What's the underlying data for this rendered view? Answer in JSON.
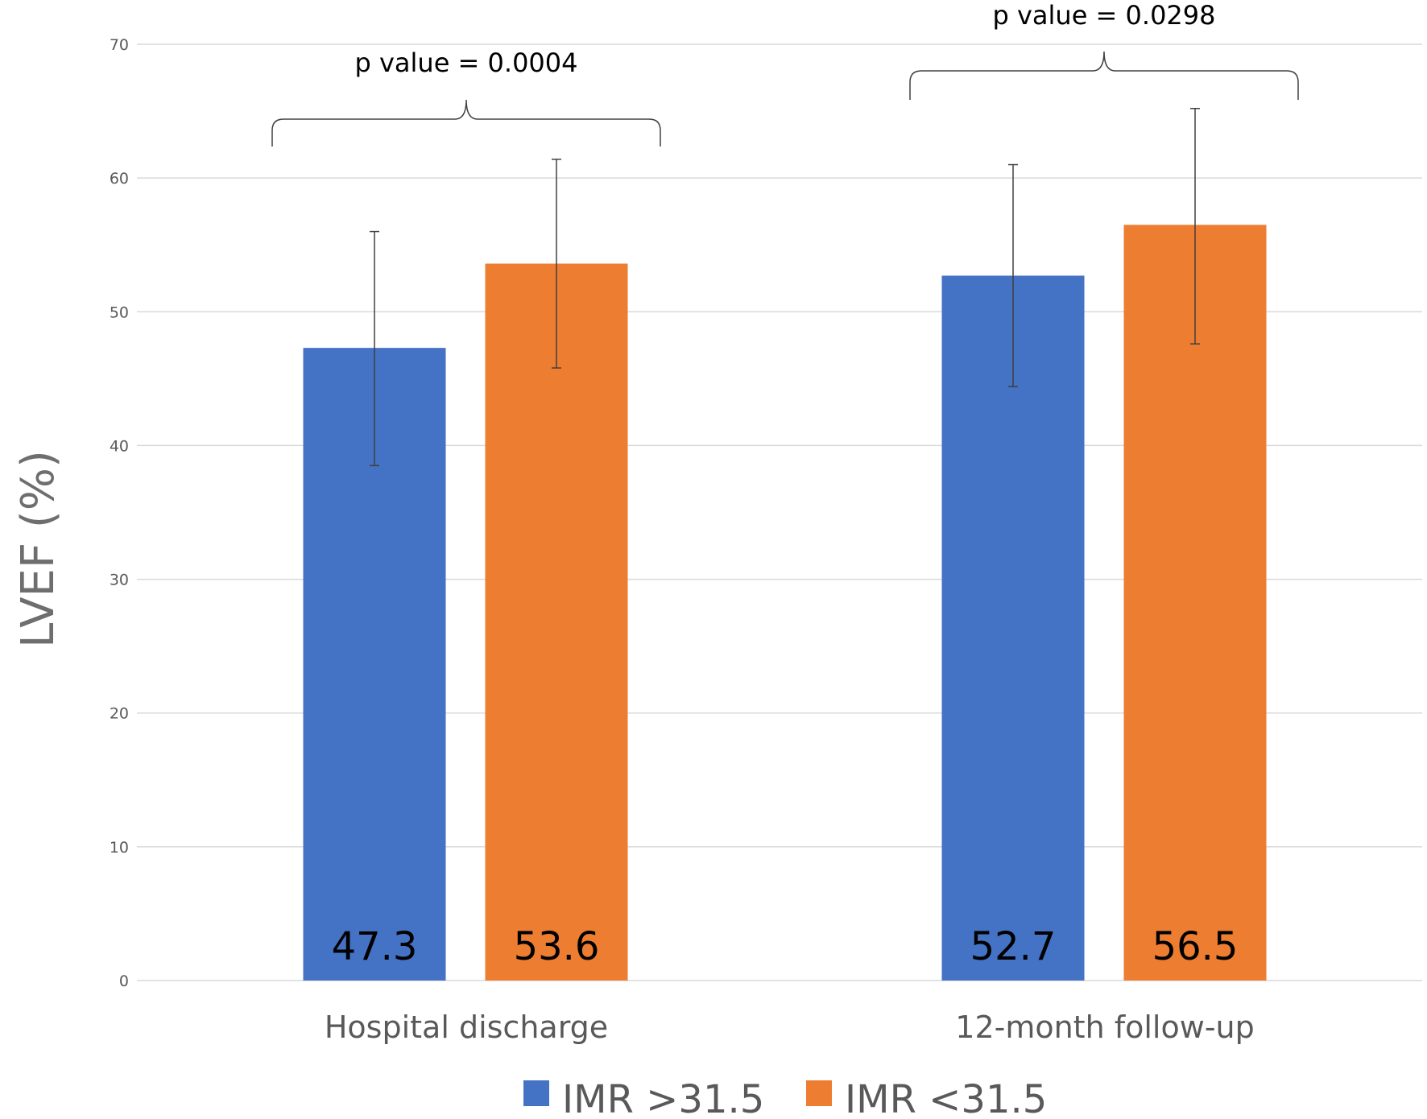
{
  "chart_data": {
    "type": "bar",
    "title": "",
    "xlabel": "",
    "ylabel": "LVEF (%)",
    "ylim": [
      0,
      70
    ],
    "yticks": [
      0,
      10,
      20,
      30,
      40,
      50,
      60,
      70
    ],
    "grid": true,
    "categories": [
      "Hospital discharge",
      "12-month follow-up"
    ],
    "series": [
      {
        "name": "IMR >31.5",
        "color": "#4472C4",
        "values": [
          47.3,
          52.7
        ],
        "value_labels": [
          "47.3",
          "52.7"
        ],
        "error_high": [
          56.0,
          61.0
        ],
        "error_low": [
          38.5,
          44.4
        ]
      },
      {
        "name": "IMR <31.5",
        "color": "#ED7D31",
        "values": [
          53.6,
          56.5
        ],
        "value_labels": [
          "53.6",
          "56.5"
        ],
        "error_high": [
          61.4,
          65.2
        ],
        "error_low": [
          45.8,
          47.6
        ]
      }
    ],
    "annotations": [
      {
        "category_index": 0,
        "text": "p value = 0.0004"
      },
      {
        "category_index": 1,
        "text": "p value = 0.0298"
      }
    ],
    "legend": {
      "position": "bottom",
      "entries": [
        "IMR >31.5",
        "IMR <31.5"
      ]
    }
  }
}
